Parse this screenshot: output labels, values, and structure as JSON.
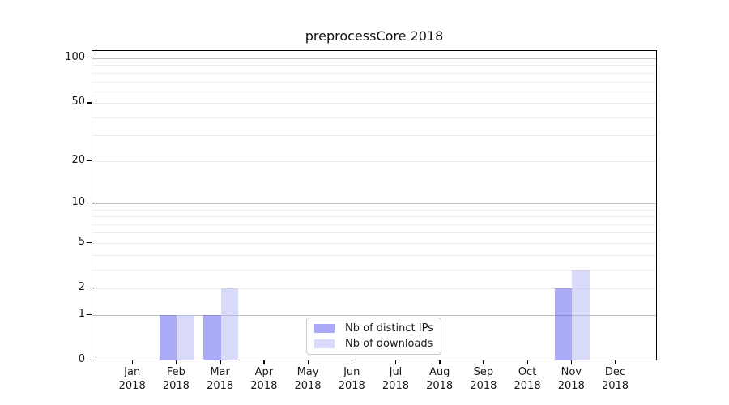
{
  "chart_data": {
    "type": "bar",
    "title": "preprocessCore 2018",
    "x": {
      "categories": [
        "Jan",
        "Feb",
        "Mar",
        "Apr",
        "May",
        "Jun",
        "Jul",
        "Aug",
        "Sep",
        "Oct",
        "Nov",
        "Dec"
      ],
      "sublabel": "2018"
    },
    "series": [
      {
        "name": "Nb of distinct IPs",
        "color": "#aaaaf8",
        "fill": "rgba(85,85,240,0.5)",
        "values": [
          0,
          1,
          1,
          0,
          0,
          0,
          0,
          0,
          0,
          0,
          2,
          0
        ]
      },
      {
        "name": "Nb of downloads",
        "color": "#dadaf9",
        "fill": "rgba(180,180,243,0.5)",
        "values": [
          0,
          1,
          2,
          0,
          0,
          0,
          0,
          0,
          0,
          0,
          3,
          0
        ]
      }
    ],
    "yscale": "log1p",
    "ylim": [
      0,
      112
    ],
    "yticks": [
      0,
      1,
      2,
      5,
      10,
      20,
      50,
      100
    ],
    "grid": {
      "show": true,
      "orientation": "horizontal",
      "major_values": [
        1,
        10,
        100
      ],
      "minor_values": [
        2,
        3,
        4,
        5,
        6,
        7,
        8,
        9,
        20,
        30,
        40,
        50,
        60,
        70,
        80,
        90
      ],
      "major_color": "#c0c0c0",
      "minor_color": "#ebebeb"
    },
    "legend": {
      "position": "lower center inside",
      "items": [
        "Nb of distinct IPs",
        "Nb of downloads"
      ]
    }
  }
}
